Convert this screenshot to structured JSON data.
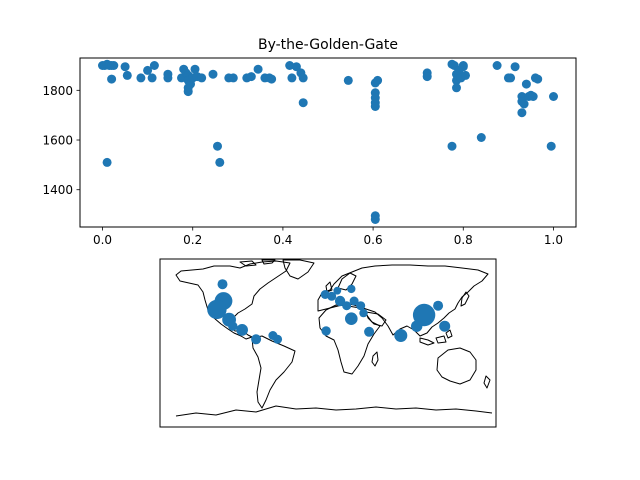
{
  "chart_data": [
    {
      "type": "scatter",
      "title": "By-the-Golden-Gate",
      "xlabel": "",
      "ylabel": "",
      "xlim": [
        -0.05,
        1.05
      ],
      "ylim": [
        1250,
        1930
      ],
      "xticks": [
        0.0,
        0.2,
        0.4,
        0.6,
        0.8,
        1.0
      ],
      "xtick_labels": [
        "0.0",
        "0.2",
        "0.4",
        "0.6",
        "0.8",
        "1.0"
      ],
      "yticks": [
        1400,
        1600,
        1800
      ],
      "ytick_labels": [
        "1400",
        "1600",
        "1800"
      ],
      "grid": false,
      "color": "#1f77b4",
      "points": [
        {
          "x": 0.0,
          "y": 1900
        },
        {
          "x": 0.005,
          "y": 1900
        },
        {
          "x": 0.01,
          "y": 1905
        },
        {
          "x": 0.015,
          "y": 1900
        },
        {
          "x": 0.02,
          "y": 1900
        },
        {
          "x": 0.025,
          "y": 1900
        },
        {
          "x": 0.01,
          "y": 1510
        },
        {
          "x": 0.02,
          "y": 1845
        },
        {
          "x": 0.05,
          "y": 1895
        },
        {
          "x": 0.055,
          "y": 1860
        },
        {
          "x": 0.085,
          "y": 1850
        },
        {
          "x": 0.1,
          "y": 1880
        },
        {
          "x": 0.11,
          "y": 1850
        },
        {
          "x": 0.115,
          "y": 1900
        },
        {
          "x": 0.145,
          "y": 1865
        },
        {
          "x": 0.145,
          "y": 1850
        },
        {
          "x": 0.175,
          "y": 1850
        },
        {
          "x": 0.18,
          "y": 1885
        },
        {
          "x": 0.185,
          "y": 1870
        },
        {
          "x": 0.19,
          "y": 1860
        },
        {
          "x": 0.19,
          "y": 1840
        },
        {
          "x": 0.19,
          "y": 1810
        },
        {
          "x": 0.19,
          "y": 1795
        },
        {
          "x": 0.195,
          "y": 1825
        },
        {
          "x": 0.2,
          "y": 1850
        },
        {
          "x": 0.205,
          "y": 1885
        },
        {
          "x": 0.21,
          "y": 1855
        },
        {
          "x": 0.22,
          "y": 1850
        },
        {
          "x": 0.245,
          "y": 1865
        },
        {
          "x": 0.255,
          "y": 1575
        },
        {
          "x": 0.26,
          "y": 1510
        },
        {
          "x": 0.28,
          "y": 1850
        },
        {
          "x": 0.29,
          "y": 1850
        },
        {
          "x": 0.32,
          "y": 1850
        },
        {
          "x": 0.33,
          "y": 1855
        },
        {
          "x": 0.345,
          "y": 1885
        },
        {
          "x": 0.36,
          "y": 1850
        },
        {
          "x": 0.37,
          "y": 1850
        },
        {
          "x": 0.375,
          "y": 1845
        },
        {
          "x": 0.415,
          "y": 1900
        },
        {
          "x": 0.42,
          "y": 1850
        },
        {
          "x": 0.43,
          "y": 1895
        },
        {
          "x": 0.44,
          "y": 1870
        },
        {
          "x": 0.445,
          "y": 1850
        },
        {
          "x": 0.445,
          "y": 1750
        },
        {
          "x": 0.545,
          "y": 1840
        },
        {
          "x": 0.605,
          "y": 1830
        },
        {
          "x": 0.605,
          "y": 1790
        },
        {
          "x": 0.605,
          "y": 1770
        },
        {
          "x": 0.605,
          "y": 1750
        },
        {
          "x": 0.605,
          "y": 1735
        },
        {
          "x": 0.605,
          "y": 1295
        },
        {
          "x": 0.605,
          "y": 1280
        },
        {
          "x": 0.61,
          "y": 1840
        },
        {
          "x": 0.72,
          "y": 1870
        },
        {
          "x": 0.72,
          "y": 1855
        },
        {
          "x": 0.775,
          "y": 1905
        },
        {
          "x": 0.78,
          "y": 1900
        },
        {
          "x": 0.775,
          "y": 1575
        },
        {
          "x": 0.785,
          "y": 1865
        },
        {
          "x": 0.785,
          "y": 1840
        },
        {
          "x": 0.785,
          "y": 1810
        },
        {
          "x": 0.79,
          "y": 1880
        },
        {
          "x": 0.795,
          "y": 1850
        },
        {
          "x": 0.8,
          "y": 1900
        },
        {
          "x": 0.8,
          "y": 1895
        },
        {
          "x": 0.805,
          "y": 1860
        },
        {
          "x": 0.84,
          "y": 1610
        },
        {
          "x": 0.875,
          "y": 1900
        },
        {
          "x": 0.9,
          "y": 1850
        },
        {
          "x": 0.905,
          "y": 1850
        },
        {
          "x": 0.915,
          "y": 1895
        },
        {
          "x": 0.93,
          "y": 1775
        },
        {
          "x": 0.93,
          "y": 1755
        },
        {
          "x": 0.93,
          "y": 1710
        },
        {
          "x": 0.935,
          "y": 1745
        },
        {
          "x": 0.94,
          "y": 1825
        },
        {
          "x": 0.945,
          "y": 1775
        },
        {
          "x": 0.95,
          "y": 1780
        },
        {
          "x": 0.955,
          "y": 1775
        },
        {
          "x": 0.96,
          "y": 1850
        },
        {
          "x": 0.965,
          "y": 1845
        },
        {
          "x": 0.995,
          "y": 1575
        },
        {
          "x": 1.0,
          "y": 1775
        }
      ]
    },
    {
      "type": "map",
      "projection": "plate-carree",
      "extent": {
        "lon": [
          -180,
          180
        ],
        "lat": [
          -90,
          90
        ]
      },
      "color": "#1f77b4",
      "points": [
        {
          "lon": -112,
          "lat": 45,
          "size": 3.2
        },
        {
          "lon": -119,
          "lat": 36,
          "size": 3.8
        },
        {
          "lon": -106,
          "lat": 25,
          "size": 1.9
        },
        {
          "lon": -92,
          "lat": 14,
          "size": 1.4
        },
        {
          "lon": -77,
          "lat": 4,
          "size": 1.0
        },
        {
          "lon": -102,
          "lat": 18,
          "size": 0.9
        },
        {
          "lon": -54,
          "lat": 4,
          "size": 0.8
        },
        {
          "lon": -59,
          "lat": 8,
          "size": 0.8
        },
        {
          "lon": -113,
          "lat": 63,
          "size": 1.0
        },
        {
          "lon": -3,
          "lat": 52,
          "size": 0.8
        },
        {
          "lon": 4,
          "lat": 50,
          "size": 0.8
        },
        {
          "lon": 10,
          "lat": 56,
          "size": 0.6
        },
        {
          "lon": 25,
          "lat": 58,
          "size": 0.7
        },
        {
          "lon": 13,
          "lat": 45,
          "size": 1.1
        },
        {
          "lon": 28,
          "lat": 45,
          "size": 0.8
        },
        {
          "lon": 20,
          "lat": 40,
          "size": 0.8
        },
        {
          "lon": 35,
          "lat": 40,
          "size": 0.8
        },
        {
          "lon": 38,
          "lat": 32,
          "size": 0.7
        },
        {
          "lon": 25,
          "lat": 26,
          "size": 1.6
        },
        {
          "lon": -2,
          "lat": 13,
          "size": 0.9
        },
        {
          "lon": 44,
          "lat": 12,
          "size": 1.0
        },
        {
          "lon": 78,
          "lat": 8,
          "size": 1.7
        },
        {
          "lon": 95,
          "lat": 18,
          "size": 1.3
        },
        {
          "lon": 103,
          "lat": 30,
          "size": 5.0
        },
        {
          "lon": 118,
          "lat": 40,
          "size": 1.0
        },
        {
          "lon": 125,
          "lat": 18,
          "size": 1.2
        }
      ]
    }
  ]
}
